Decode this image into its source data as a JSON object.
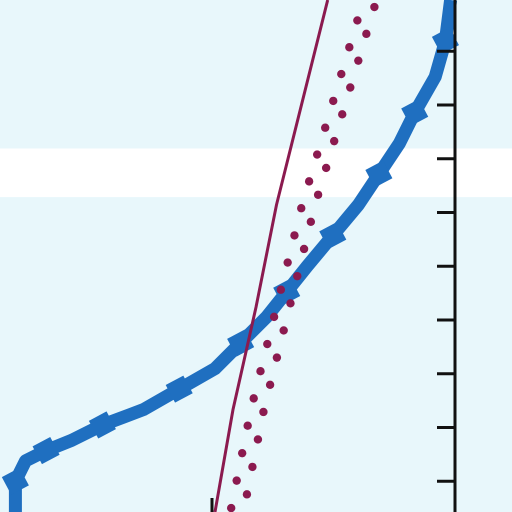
{
  "colors": {
    "background": "#e8f7fb",
    "band": "#ffffff",
    "blue_series": "#1f6fc0",
    "maroon_series": "#8b1a4f",
    "axis": "#111111"
  },
  "chart_data": {
    "type": "line",
    "title": "",
    "xlabel": "",
    "ylabel": "",
    "xlim": [
      0,
      1
    ],
    "ylim": [
      0,
      1
    ],
    "grid": false,
    "legend": "none",
    "highlight_band_y": [
      0.615,
      0.71
    ],
    "ticks_y": [
      0.06,
      0.165,
      0.27,
      0.375,
      0.48,
      0.585,
      0.69,
      0.795,
      0.9
    ],
    "series": [
      {
        "style": "thick-stepped",
        "color_key": "blue_series",
        "points": [
          [
            0.03,
            0.0
          ],
          [
            0.03,
            0.06
          ],
          [
            0.05,
            0.1
          ],
          [
            0.09,
            0.12
          ],
          [
            0.14,
            0.14
          ],
          [
            0.2,
            0.17
          ],
          [
            0.28,
            0.2
          ],
          [
            0.35,
            0.24
          ],
          [
            0.42,
            0.28
          ],
          [
            0.47,
            0.33
          ],
          [
            0.52,
            0.38
          ],
          [
            0.56,
            0.43
          ],
          [
            0.6,
            0.48
          ],
          [
            0.65,
            0.54
          ],
          [
            0.7,
            0.6
          ],
          [
            0.74,
            0.66
          ],
          [
            0.78,
            0.72
          ],
          [
            0.81,
            0.78
          ],
          [
            0.85,
            0.85
          ],
          [
            0.87,
            0.92
          ],
          [
            0.88,
            1.0
          ]
        ]
      },
      {
        "style": "solid-thin",
        "color_key": "maroon_series",
        "points": [
          [
            0.42,
            0.0
          ],
          [
            0.455,
            0.2
          ],
          [
            0.5,
            0.4
          ],
          [
            0.54,
            0.6
          ],
          [
            0.59,
            0.8
          ],
          [
            0.64,
            1.0
          ]
        ]
      },
      {
        "style": "dotted",
        "color_key": "maroon_series",
        "points": [
          [
            0.45,
            0.0
          ],
          [
            0.49,
            0.2
          ],
          [
            0.54,
            0.4
          ],
          [
            0.59,
            0.6
          ],
          [
            0.65,
            0.8
          ],
          [
            0.71,
            1.0
          ]
        ]
      }
    ]
  }
}
